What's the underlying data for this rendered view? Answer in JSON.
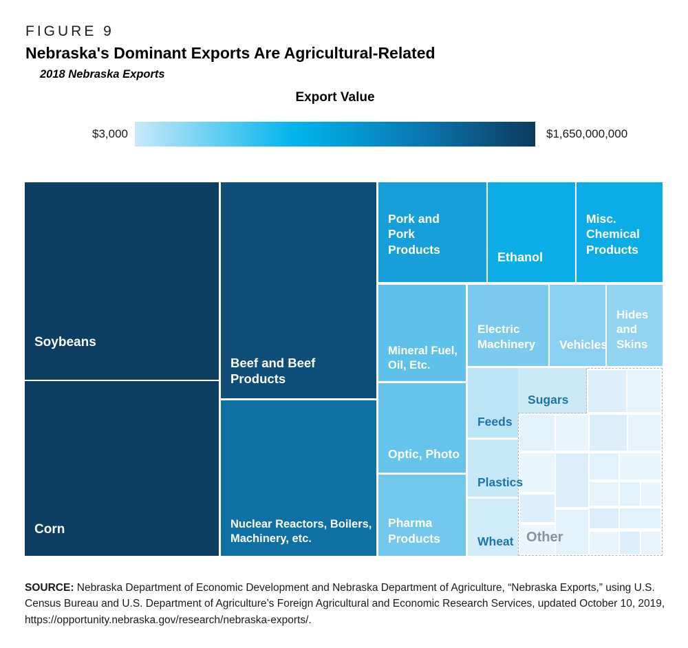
{
  "header": {
    "figure_label": "FIGURE 9",
    "title": "Nebraska's Dominant Exports Are Agricultural-Related",
    "subtitle": "2018 Nebraska Exports"
  },
  "source": {
    "prefix": "SOURCE:",
    "text": " Nebraska Department of Economic Development and Nebraska Department of Agriculture, “Nebraska Exports,” using U.S. Census Bureau and U.S. Department of Agriculture’s Foreign Agricultural and Economic Research Services, updated October 10, 2019, https://opportunity.nebraska.gov/research/nebraska-exports/."
  },
  "chart_data": {
    "type": "treemap",
    "title": "Nebraska's Dominant Exports Are Agricultural-Related",
    "subtitle": "2018 Nebraska Exports",
    "figure_label": "FIGURE 9",
    "year": "2018",
    "legend": {
      "title": "Export Value",
      "min_label": "$3,000",
      "max_label": "$1,650,000,000",
      "gradient_stops": [
        "#c9e9f9",
        "#00b4ec",
        "#0a7ab5",
        "#0d3a5f"
      ],
      "gradient_positions": [
        0,
        40,
        70,
        100
      ]
    },
    "items": [
      {
        "id": "soybeans",
        "label": "Soybeans",
        "color": "#0d3d61",
        "text_color": "#ffffff",
        "fs": 19,
        "pad": 42,
        "rect": {
          "x": 0,
          "y": 0,
          "w": 30.42,
          "h": 52.85
        }
      },
      {
        "id": "corn",
        "label": "Corn",
        "color": "#0d3d61",
        "text_color": "#ffffff",
        "fs": 19,
        "pad": 26,
        "rect": {
          "x": 0,
          "y": 53.22,
          "w": 30.42,
          "h": 46.78
        }
      },
      {
        "id": "beef-and-beef-products",
        "label": "Beef and Beef\nProducts",
        "color": "#0e4e79",
        "text_color": "#ffffff",
        "fs": 18.5,
        "pad": 16,
        "rect": {
          "x": 30.74,
          "y": 0,
          "w": 24.38,
          "h": 57.83
        }
      },
      {
        "id": "nuclear-reactors-boilers-machinery",
        "label": "Nuclear Reactors, Boilers,\nMachinery, etc.",
        "color": "#0f70a3",
        "text_color": "#ffffff",
        "fs": 16.5,
        "pad": 14,
        "rect": {
          "x": 30.74,
          "y": 58.38,
          "w": 24.38,
          "h": 41.62
        }
      },
      {
        "id": "pork-and-pork-products",
        "label": "Pork and\nPork\nProducts",
        "color": "#169fd9",
        "text_color": "#ffffff",
        "fs": 17.5,
        "pad": 36,
        "rect": {
          "x": 55.45,
          "y": 0,
          "w": 16.94,
          "h": 26.7
        }
      },
      {
        "id": "ethanol",
        "label": "Ethanol",
        "color": "#0cade6",
        "text_color": "#ffffff",
        "fs": 18,
        "pad": 24,
        "rect": {
          "x": 72.6,
          "y": 0,
          "w": 13.7,
          "h": 26.7
        }
      },
      {
        "id": "misc-chemical-products",
        "label": "Misc.\nChemical\nProducts",
        "color": "#0cade6",
        "text_color": "#ffffff",
        "fs": 17.5,
        "pad": 36,
        "rect": {
          "x": 86.52,
          "y": 0,
          "w": 13.48,
          "h": 26.7
        }
      },
      {
        "id": "mineral-fuel-oil",
        "label": "Mineral Fuel,\nOil, Etc.",
        "color": "#5fc0ea",
        "text_color": "#ffffff",
        "fs": 16.5,
        "pad": 12,
        "rect": {
          "x": 55.45,
          "y": 27.44,
          "w": 13.7,
          "h": 25.78
        }
      },
      {
        "id": "optic-photo",
        "label": "Optic, Photo",
        "color": "#66c3eb",
        "text_color": "#ffffff",
        "fs": 17.5,
        "pad": 16,
        "rect": {
          "x": 55.45,
          "y": 53.78,
          "w": 13.7,
          "h": 23.94
        }
      },
      {
        "id": "pharma-products",
        "label": "Pharma\nProducts",
        "color": "#74c8ed",
        "text_color": "#ffffff",
        "fs": 17.5,
        "pad": 14,
        "rect": {
          "x": 55.45,
          "y": 78.27,
          "w": 13.7,
          "h": 21.73
        }
      },
      {
        "id": "electric-machinery",
        "label": "Electric\nMachinery",
        "color": "#7ccaed",
        "text_color": "#ffffff",
        "fs": 17,
        "pad": 20,
        "rect": {
          "x": 69.47,
          "y": 27.44,
          "w": 12.62,
          "h": 21.73
        }
      },
      {
        "id": "vehicles",
        "label": "Vehicles",
        "color": "#8bd0f0",
        "text_color": "#ffffff",
        "fs": 17.5,
        "pad": 20,
        "rect": {
          "x": 82.31,
          "y": 27.44,
          "w": 8.74,
          "h": 21.73
        }
      },
      {
        "id": "hides-and-skins",
        "label": "Hides\nand\nSkins",
        "color": "#92d3f0",
        "text_color": "#ffffff",
        "fs": 17,
        "pad": 20,
        "rect": {
          "x": 91.26,
          "y": 27.44,
          "w": 8.74,
          "h": 21.73
        }
      },
      {
        "id": "feeds",
        "label": "Feeds",
        "color": "#bce4f7",
        "text_color": "#1b74ad",
        "fs": 17.5,
        "pad": 12,
        "rect": {
          "x": 69.47,
          "y": 49.72,
          "w": 7.87,
          "h": 18.6
        }
      },
      {
        "id": "plastics",
        "label": "Plastics",
        "color": "#c6e8f8",
        "text_color": "#1b74ad",
        "fs": 17.5,
        "pad": 10,
        "rect": {
          "x": 69.47,
          "y": 68.88,
          "w": 7.87,
          "h": 15.29
        }
      },
      {
        "id": "wheat",
        "label": "Wheat",
        "color": "#d0ecf9",
        "text_color": "#1b74ad",
        "fs": 17.5,
        "pad": 10,
        "rect": {
          "x": 69.47,
          "y": 84.71,
          "w": 7.87,
          "h": 15.29
        }
      },
      {
        "id": "sugars",
        "label": "Sugars",
        "color": "#cde9f8",
        "text_color": "#1b74ad",
        "fs": 17.5,
        "pad": 8,
        "cls": "sugars",
        "rect": {
          "x": 77.35,
          "y": 49.72,
          "w": 10.79,
          "h": 12.15
        }
      }
    ],
    "other": {
      "label": "Other",
      "text_color": "#8b9298",
      "border_style": "dashed",
      "rect": {
        "x": 77.35,
        "y": 49.72,
        "w": 22.65,
        "h": 50.28
      },
      "cells": [
        {
          "x": 48.6,
          "y": 0.8,
          "w": 26.2,
          "h": 22.5,
          "fill": "#ddeffa"
        },
        {
          "x": 75.8,
          "y": 0.8,
          "w": 23.4,
          "h": 22.5,
          "fill": "#e7f4fc"
        },
        {
          "x": 1,
          "y": 24.8,
          "w": 24,
          "h": 19,
          "fill": "#e1f2fb"
        },
        {
          "x": 26,
          "y": 24.8,
          "w": 22.4,
          "h": 19,
          "fill": "#e9f6fd"
        },
        {
          "x": 49.4,
          "y": 24.8,
          "w": 26.2,
          "h": 19,
          "fill": "#ddeffa"
        },
        {
          "x": 76.6,
          "y": 24.8,
          "w": 22.6,
          "h": 19,
          "fill": "#e7f4fc"
        },
        {
          "x": 1,
          "y": 45.3,
          "w": 24,
          "h": 20.9,
          "fill": "#e9f6fd"
        },
        {
          "x": 26,
          "y": 45.3,
          "w": 22.4,
          "h": 29,
          "fill": "#ddeffa"
        },
        {
          "x": 49.4,
          "y": 45.3,
          "w": 20.4,
          "h": 14,
          "fill": "#e1f2fb"
        },
        {
          "x": 70.8,
          "y": 45.3,
          "w": 28.4,
          "h": 14,
          "fill": "#e9f6fd"
        },
        {
          "x": 1,
          "y": 67.7,
          "w": 24,
          "h": 14.6,
          "fill": "#ddeffa"
        },
        {
          "x": 49.4,
          "y": 60.8,
          "w": 20.4,
          "h": 12.5,
          "fill": "#e7f4fc"
        },
        {
          "x": 70.8,
          "y": 60.8,
          "w": 14,
          "h": 12.5,
          "fill": "#e1f2fb"
        },
        {
          "x": 85.8,
          "y": 60.8,
          "w": 13.4,
          "h": 12.5,
          "fill": "#e9f6fd"
        },
        {
          "x": 26,
          "y": 75.8,
          "w": 22.4,
          "h": 23.4,
          "fill": "#e1f2fb"
        },
        {
          "x": 1,
          "y": 83.8,
          "w": 24,
          "h": 15.4,
          "fill": "#e9f6fd"
        },
        {
          "x": 49.4,
          "y": 74.8,
          "w": 20.4,
          "h": 11,
          "fill": "#ddeffa"
        },
        {
          "x": 70.8,
          "y": 74.8,
          "w": 28.4,
          "h": 11,
          "fill": "#e1f2fb"
        },
        {
          "x": 49.4,
          "y": 87.3,
          "w": 20.4,
          "h": 11.9,
          "fill": "#e9f6fd"
        },
        {
          "x": 70.8,
          "y": 87.3,
          "w": 13.6,
          "h": 11.9,
          "fill": "#ddeffa"
        },
        {
          "x": 85.8,
          "y": 87.3,
          "w": 13.2,
          "h": 11.9,
          "fill": "#e7f4fc"
        }
      ]
    }
  }
}
